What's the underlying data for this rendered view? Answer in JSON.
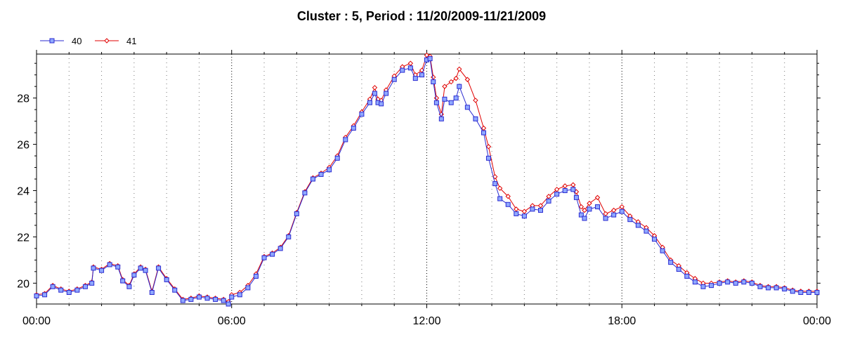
{
  "chart_data": {
    "type": "line",
    "title": "Cluster : 5, Period : 11/20/2009-11/21/2009",
    "xlabel": "",
    "ylabel": "",
    "x_ticks": [
      "00:00",
      "06:00",
      "12:00",
      "18:00",
      "00:00"
    ],
    "y_ticks": [
      "20",
      "22",
      "24",
      "26",
      "28"
    ],
    "ylim": [
      19.1,
      29.9
    ],
    "xlim_hours": [
      0,
      24
    ],
    "legend_position": "top-left",
    "grid": "dotted vertical",
    "series": [
      {
        "name": "40",
        "color": "#2b2bd1",
        "fill": "#8fa8ff",
        "marker": "square",
        "points": [
          [
            0.0,
            19.45
          ],
          [
            0.25,
            19.5
          ],
          [
            0.5,
            19.85
          ],
          [
            0.75,
            19.7
          ],
          [
            1.0,
            19.6
          ],
          [
            1.25,
            19.7
          ],
          [
            1.5,
            19.85
          ],
          [
            1.7,
            20.0
          ],
          [
            1.75,
            20.65
          ],
          [
            2.0,
            20.55
          ],
          [
            2.25,
            20.8
          ],
          [
            2.5,
            20.7
          ],
          [
            2.65,
            20.1
          ],
          [
            2.85,
            19.85
          ],
          [
            3.0,
            20.35
          ],
          [
            3.2,
            20.65
          ],
          [
            3.35,
            20.55
          ],
          [
            3.55,
            19.6
          ],
          [
            3.75,
            20.65
          ],
          [
            4.0,
            20.15
          ],
          [
            4.25,
            19.7
          ],
          [
            4.5,
            19.25
          ],
          [
            4.75,
            19.3
          ],
          [
            5.0,
            19.4
          ],
          [
            5.25,
            19.35
          ],
          [
            5.5,
            19.3
          ],
          [
            5.75,
            19.25
          ],
          [
            5.9,
            19.1
          ],
          [
            6.0,
            19.4
          ],
          [
            6.25,
            19.5
          ],
          [
            6.5,
            19.8
          ],
          [
            6.75,
            20.3
          ],
          [
            7.0,
            21.1
          ],
          [
            7.25,
            21.25
          ],
          [
            7.5,
            21.5
          ],
          [
            7.75,
            22.0
          ],
          [
            8.0,
            23.0
          ],
          [
            8.25,
            23.9
          ],
          [
            8.5,
            24.5
          ],
          [
            8.75,
            24.7
          ],
          [
            9.0,
            24.9
          ],
          [
            9.25,
            25.4
          ],
          [
            9.5,
            26.2
          ],
          [
            9.75,
            26.7
          ],
          [
            10.0,
            27.3
          ],
          [
            10.25,
            27.8
          ],
          [
            10.4,
            28.2
          ],
          [
            10.5,
            27.8
          ],
          [
            10.6,
            27.75
          ],
          [
            10.75,
            28.2
          ],
          [
            11.0,
            28.8
          ],
          [
            11.25,
            29.2
          ],
          [
            11.5,
            29.3
          ],
          [
            11.65,
            28.85
          ],
          [
            11.85,
            29.0
          ],
          [
            12.0,
            29.65
          ],
          [
            12.1,
            29.7
          ],
          [
            12.2,
            28.7
          ],
          [
            12.3,
            27.8
          ],
          [
            12.45,
            27.1
          ],
          [
            12.55,
            27.95
          ],
          [
            12.75,
            27.8
          ],
          [
            12.9,
            28.0
          ],
          [
            13.0,
            28.5
          ],
          [
            13.25,
            27.6
          ],
          [
            13.5,
            27.1
          ],
          [
            13.75,
            26.5
          ],
          [
            13.9,
            25.4
          ],
          [
            14.1,
            24.3
          ],
          [
            14.25,
            23.65
          ],
          [
            14.5,
            23.4
          ],
          [
            14.75,
            23.0
          ],
          [
            15.0,
            22.9
          ],
          [
            15.25,
            23.2
          ],
          [
            15.5,
            23.15
          ],
          [
            15.75,
            23.55
          ],
          [
            16.0,
            23.85
          ],
          [
            16.25,
            24.0
          ],
          [
            16.5,
            24.05
          ],
          [
            16.6,
            23.7
          ],
          [
            16.75,
            22.95
          ],
          [
            16.85,
            22.8
          ],
          [
            17.0,
            23.2
          ],
          [
            17.25,
            23.3
          ],
          [
            17.5,
            22.8
          ],
          [
            17.75,
            22.95
          ],
          [
            18.0,
            23.1
          ],
          [
            18.25,
            22.75
          ],
          [
            18.5,
            22.5
          ],
          [
            18.75,
            22.25
          ],
          [
            19.0,
            21.9
          ],
          [
            19.25,
            21.4
          ],
          [
            19.5,
            20.9
          ],
          [
            19.75,
            20.6
          ],
          [
            20.0,
            20.3
          ],
          [
            20.25,
            20.05
          ],
          [
            20.5,
            19.85
          ],
          [
            20.75,
            19.9
          ],
          [
            21.0,
            20.0
          ],
          [
            21.25,
            20.05
          ],
          [
            21.5,
            20.0
          ],
          [
            21.75,
            20.05
          ],
          [
            22.0,
            20.0
          ],
          [
            22.25,
            19.85
          ],
          [
            22.5,
            19.8
          ],
          [
            22.75,
            19.8
          ],
          [
            23.0,
            19.75
          ],
          [
            23.25,
            19.65
          ],
          [
            23.5,
            19.6
          ],
          [
            23.75,
            19.6
          ],
          [
            24.0,
            19.6
          ]
        ]
      },
      {
        "name": "41",
        "color": "#e00000",
        "fill": "#ffffff",
        "marker": "diamond",
        "points": [
          [
            0.0,
            19.5
          ],
          [
            0.25,
            19.55
          ],
          [
            0.5,
            19.9
          ],
          [
            0.75,
            19.75
          ],
          [
            1.0,
            19.65
          ],
          [
            1.25,
            19.75
          ],
          [
            1.5,
            19.9
          ],
          [
            1.7,
            20.05
          ],
          [
            1.75,
            20.7
          ],
          [
            2.0,
            20.6
          ],
          [
            2.25,
            20.85
          ],
          [
            2.5,
            20.75
          ],
          [
            2.65,
            20.15
          ],
          [
            2.85,
            19.9
          ],
          [
            3.0,
            20.4
          ],
          [
            3.2,
            20.7
          ],
          [
            3.35,
            20.6
          ],
          [
            3.55,
            19.65
          ],
          [
            3.75,
            20.7
          ],
          [
            4.0,
            20.2
          ],
          [
            4.25,
            19.75
          ],
          [
            4.5,
            19.3
          ],
          [
            4.75,
            19.35
          ],
          [
            5.0,
            19.45
          ],
          [
            5.25,
            19.4
          ],
          [
            5.5,
            19.35
          ],
          [
            5.75,
            19.3
          ],
          [
            5.9,
            19.2
          ],
          [
            6.0,
            19.5
          ],
          [
            6.25,
            19.6
          ],
          [
            6.5,
            19.9
          ],
          [
            6.75,
            20.4
          ],
          [
            7.0,
            21.15
          ],
          [
            7.25,
            21.3
          ],
          [
            7.5,
            21.55
          ],
          [
            7.75,
            22.05
          ],
          [
            8.0,
            23.05
          ],
          [
            8.25,
            23.95
          ],
          [
            8.5,
            24.55
          ],
          [
            8.75,
            24.75
          ],
          [
            9.0,
            25.0
          ],
          [
            9.25,
            25.5
          ],
          [
            9.5,
            26.3
          ],
          [
            9.75,
            26.8
          ],
          [
            10.0,
            27.4
          ],
          [
            10.25,
            27.95
          ],
          [
            10.4,
            28.45
          ],
          [
            10.5,
            27.95
          ],
          [
            10.6,
            27.9
          ],
          [
            10.75,
            28.35
          ],
          [
            11.0,
            28.95
          ],
          [
            11.25,
            29.35
          ],
          [
            11.5,
            29.5
          ],
          [
            11.65,
            29.0
          ],
          [
            11.85,
            29.2
          ],
          [
            12.0,
            29.85
          ],
          [
            12.1,
            29.8
          ],
          [
            12.2,
            28.9
          ],
          [
            12.3,
            28.0
          ],
          [
            12.45,
            27.3
          ],
          [
            12.55,
            28.5
          ],
          [
            12.75,
            28.7
          ],
          [
            12.9,
            28.85
          ],
          [
            13.0,
            29.25
          ],
          [
            13.25,
            28.8
          ],
          [
            13.5,
            27.9
          ],
          [
            13.75,
            26.7
          ],
          [
            13.9,
            25.9
          ],
          [
            14.1,
            24.6
          ],
          [
            14.25,
            24.1
          ],
          [
            14.5,
            23.75
          ],
          [
            14.75,
            23.2
          ],
          [
            15.0,
            23.1
          ],
          [
            15.25,
            23.35
          ],
          [
            15.5,
            23.35
          ],
          [
            15.75,
            23.75
          ],
          [
            16.0,
            24.05
          ],
          [
            16.25,
            24.2
          ],
          [
            16.5,
            24.25
          ],
          [
            16.6,
            23.95
          ],
          [
            16.75,
            23.3
          ],
          [
            16.85,
            23.15
          ],
          [
            17.0,
            23.45
          ],
          [
            17.25,
            23.7
          ],
          [
            17.5,
            23.0
          ],
          [
            17.75,
            23.15
          ],
          [
            18.0,
            23.3
          ],
          [
            18.25,
            22.9
          ],
          [
            18.5,
            22.65
          ],
          [
            18.75,
            22.4
          ],
          [
            19.0,
            22.05
          ],
          [
            19.25,
            21.55
          ],
          [
            19.5,
            21.0
          ],
          [
            19.75,
            20.75
          ],
          [
            20.0,
            20.45
          ],
          [
            20.25,
            20.2
          ],
          [
            20.5,
            20.0
          ],
          [
            20.75,
            20.0
          ],
          [
            21.0,
            20.05
          ],
          [
            21.25,
            20.1
          ],
          [
            21.5,
            20.05
          ],
          [
            21.75,
            20.1
          ],
          [
            22.0,
            20.05
          ],
          [
            22.25,
            19.9
          ],
          [
            22.5,
            19.85
          ],
          [
            22.75,
            19.85
          ],
          [
            23.0,
            19.8
          ],
          [
            23.25,
            19.7
          ],
          [
            23.5,
            19.65
          ],
          [
            23.75,
            19.65
          ],
          [
            24.0,
            19.65
          ]
        ]
      }
    ]
  }
}
